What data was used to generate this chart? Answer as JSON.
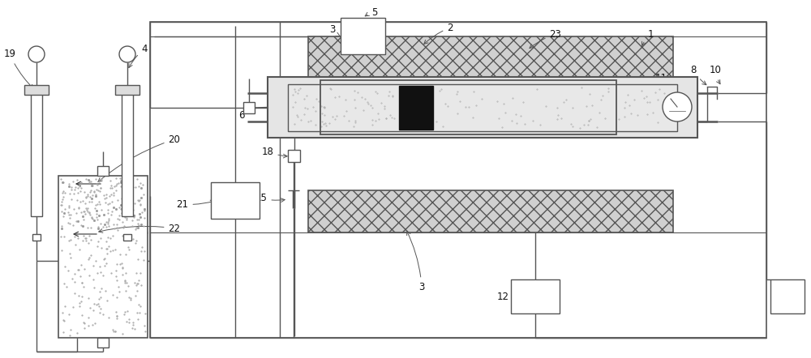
{
  "fig_width": 10.0,
  "fig_height": 4.42,
  "lc": "#555555",
  "lw": 1.0,
  "bg": "#ffffff"
}
